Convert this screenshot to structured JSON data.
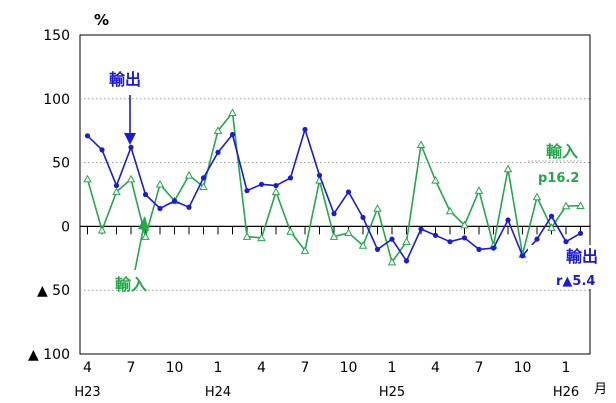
{
  "chart_data": {
    "type": "line",
    "ylabel": "%",
    "xlabel": "月",
    "ylim": [
      -100,
      150
    ],
    "grid": "dotted horizontal at 50 and 100",
    "y_ticks": [
      {
        "value": 150,
        "label": "150"
      },
      {
        "value": 100,
        "label": "100"
      },
      {
        "value": 50,
        "label": "50"
      },
      {
        "value": 0,
        "label": "0"
      },
      {
        "value": -50,
        "label": "▲ 50"
      },
      {
        "value": -100,
        "label": "▲ 100"
      }
    ],
    "x_month_labels": [
      {
        "index": 0,
        "label": "4"
      },
      {
        "index": 3,
        "label": "7"
      },
      {
        "index": 6,
        "label": "10"
      },
      {
        "index": 9,
        "label": "1"
      },
      {
        "index": 12,
        "label": "4"
      },
      {
        "index": 15,
        "label": "7"
      },
      {
        "index": 18,
        "label": "10"
      },
      {
        "index": 21,
        "label": "1"
      },
      {
        "index": 24,
        "label": "4"
      },
      {
        "index": 27,
        "label": "7"
      },
      {
        "index": 30,
        "label": "10"
      },
      {
        "index": 33,
        "label": "1"
      }
    ],
    "x_year_labels": [
      {
        "index": 0,
        "label": "H23"
      },
      {
        "index": 9,
        "label": "H24"
      },
      {
        "index": 21,
        "label": "H25"
      },
      {
        "index": 33,
        "label": "H26"
      }
    ],
    "series": [
      {
        "name": "輸出",
        "color": "#1a1adc",
        "marker": "filled-circle",
        "values": [
          71,
          60,
          32,
          62,
          25,
          14,
          20,
          15,
          38,
          58,
          72,
          28,
          33,
          32,
          38,
          76,
          40,
          10,
          27,
          7,
          -18,
          -10,
          -27,
          -2,
          -7,
          -12,
          -9,
          -18,
          -17,
          5,
          -23,
          -10,
          8,
          -12,
          -5.4
        ]
      },
      {
        "name": "輸入",
        "color": "#22a84a",
        "marker": "hollow-triangle",
        "values": [
          37,
          -3,
          27,
          37,
          -8,
          33,
          20,
          40,
          31,
          75,
          89,
          -8,
          -9,
          27,
          -4,
          -19,
          36,
          -8,
          -5,
          -15,
          14,
          -28,
          -12,
          64,
          36,
          12,
          1,
          28,
          -15,
          45,
          -22,
          23,
          -1,
          16,
          16.2
        ]
      }
    ],
    "annotations": [
      {
        "text": "輸出",
        "color": "#1a1adc"
      },
      {
        "text": "輸入",
        "color": "#22a84a"
      },
      {
        "text": "輸入",
        "color": "#22a84a"
      },
      {
        "text": "p16.2",
        "color": "#22a84a"
      },
      {
        "text": "輸出",
        "color": "#1a1adc"
      },
      {
        "text": "r▲5.4",
        "color": "#1a1adc"
      }
    ]
  }
}
